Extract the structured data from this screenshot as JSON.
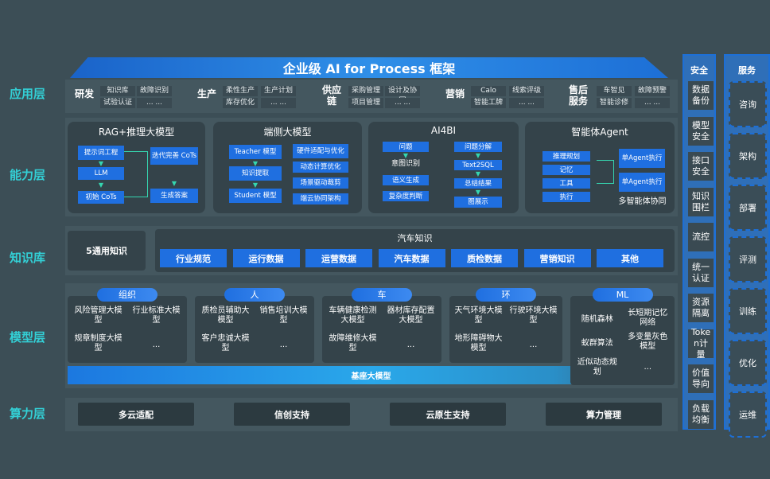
{
  "title": "企业级 AI for Process 框架",
  "layers": [
    "应用层",
    "能力层",
    "知识库",
    "模型层",
    "算力层"
  ],
  "application": [
    {
      "name": "研发",
      "items": [
        "知识库",
        "故障识别",
        "试验认证",
        "... ..."
      ]
    },
    {
      "name": "生产",
      "items": [
        "柔性生产",
        "生产计划",
        "库存优化",
        "... ..."
      ]
    },
    {
      "name": "供应链",
      "items": [
        "采购管理",
        "设计及协同",
        "项目管理",
        "... ..."
      ]
    },
    {
      "name": "营销",
      "items": [
        "Calo",
        "线索评级",
        "智能工牌",
        "... ..."
      ]
    },
    {
      "name": "售后服务",
      "items": [
        "车智见",
        "故障预警",
        "智能诊修",
        "... ..."
      ]
    }
  ],
  "capability": {
    "rag": {
      "title": "RAG+推理大模型",
      "boxes": [
        "提示词工程",
        "LLM",
        "初始 CoTs",
        "迭代完善 CoTs",
        "生成答案"
      ]
    },
    "edge": {
      "title": "端侧大模型",
      "boxes": [
        "Teacher 模型",
        "知识提取",
        "Student 模型",
        "硬件适配与优化",
        "动态计算优化",
        "场景驱动裁剪",
        "端云协同架构"
      ]
    },
    "ai4bi": {
      "title": "AI4BI",
      "boxes": [
        "问题",
        "意图识别",
        "语义生成",
        "复杂度判断",
        "问题分解",
        "Text2SQL",
        "总结结果",
        "图展示"
      ]
    },
    "agent": {
      "title": "智能体Agent",
      "boxes": [
        "推理规划",
        "记忆",
        "工具",
        "执行",
        "单Agent执行",
        "单Agent执行"
      ],
      "caption": "多智能体协同"
    }
  },
  "knowledge": {
    "general": "5通用知识",
    "auto_title": "汽车知识",
    "auto_items": [
      "行业规范",
      "运行数据",
      "运营数据",
      "汽车数据",
      "质检数据",
      "营销知识",
      "其他"
    ]
  },
  "models": [
    {
      "tag": "组织",
      "items": [
        "风险管理大模型",
        "行业标准大模型",
        "规章制度大模型",
        "..."
      ]
    },
    {
      "tag": "人",
      "items": [
        "质检员辅助大模型",
        "销售培训大模型",
        "客户忠诚大模型",
        "..."
      ]
    },
    {
      "tag": "车",
      "items": [
        "车辆健康检测大模型",
        "器材库存配置大模型",
        "故障维修大模型",
        "..."
      ]
    },
    {
      "tag": "环",
      "items": [
        "天气环境大模型",
        "行驶环境大模型",
        "地形障碍物大模型",
        "..."
      ]
    },
    {
      "tag": "ML",
      "items": [
        "随机森林",
        "长短期记忆网络",
        "蚁群算法",
        "多变量灰色模型",
        "近似动态规划",
        "..."
      ]
    }
  ],
  "base_model": "基座大模型",
  "compute": [
    "多云适配",
    "信创支持",
    "云原生支持",
    "算力管理"
  ],
  "security": {
    "title": "安全",
    "items": [
      "数据备份",
      "模型安全",
      "接口安全",
      "知识围栏",
      "流控",
      "统一认证",
      "资源隔离",
      "Token计量",
      "价值导向",
      "负载均衡"
    ]
  },
  "service": {
    "title": "服务",
    "items": [
      "咨询",
      "架构",
      "部署",
      "评测",
      "训练",
      "优化",
      "运维"
    ]
  },
  "colors": {
    "background": "#3c4e56",
    "accent_blue": "#1f6fe0",
    "layer_label": "#33d0d6"
  }
}
